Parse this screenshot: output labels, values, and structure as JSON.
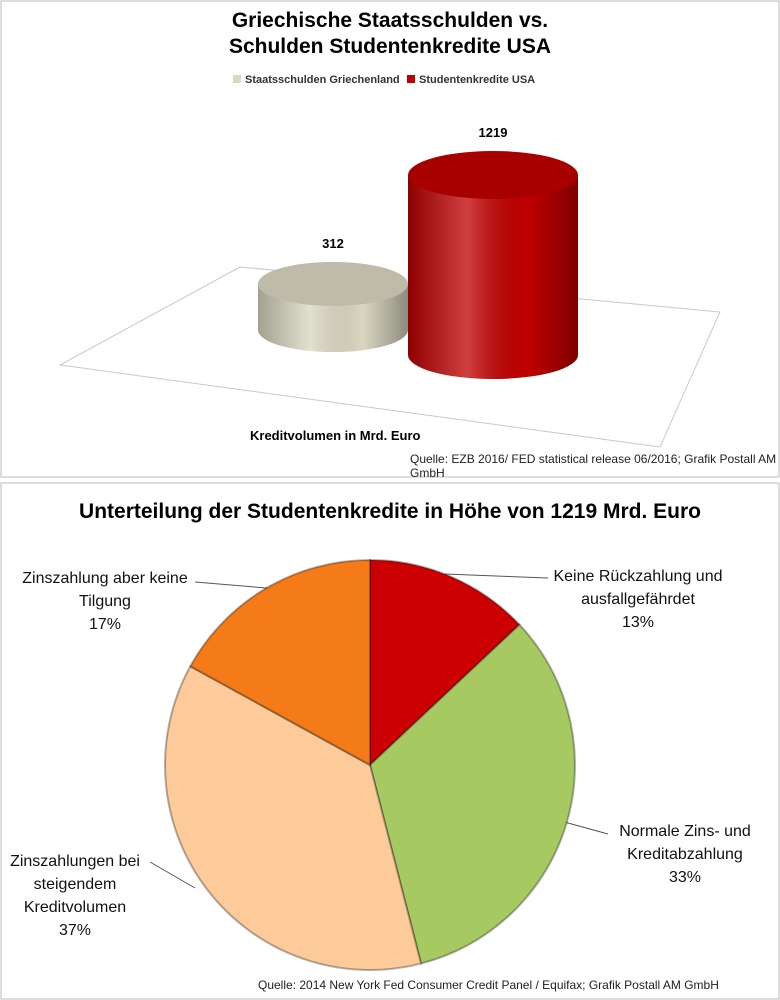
{
  "chart_data": [
    {
      "type": "bar",
      "title": "Griechische Staatsschulden vs. Schulden Studentenkredite USA",
      "series": [
        {
          "name": "Staatsschulden Griechenland",
          "color": "#d9d6c1",
          "values": [
            312
          ]
        },
        {
          "name": "Studentenkredite USA",
          "color": "#c00000",
          "values": [
            1219
          ]
        }
      ],
      "xlabel": "Kreditvolumen in Mrd. Euro",
      "source": "Quelle: EZB 2016/ FED statistical release 06/2016; Grafik Postall AM GmbH",
      "legend": "top"
    },
    {
      "type": "pie",
      "title": "Unterteilung der Studentenkredite in Höhe von 1219 Mrd. Euro",
      "categories": [
        "Keine Rückzahlung und ausfallgefährdet",
        "Normale Zins- und Kreditabzahlung",
        "Zinszahlungen bei steigendem Kreditvolumen",
        "Zinszahlung aber keine Tilgung"
      ],
      "values": [
        13,
        33,
        37,
        17
      ],
      "value_labels": [
        "13%",
        "33%",
        "37%",
        "17%"
      ],
      "colors": [
        "#cc0000",
        "#a6c962",
        "#fdca9a",
        "#f47b17"
      ],
      "source": "Quelle: 2014 New York Fed Consumer Credit Panel / Equifax; Grafik Postall AM GmbH"
    }
  ]
}
